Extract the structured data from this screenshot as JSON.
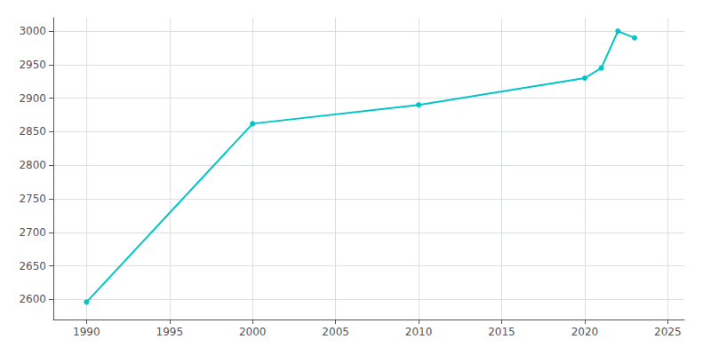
{
  "chart_data": {
    "type": "line",
    "x": [
      1990,
      2000,
      2010,
      2020,
      2021,
      2022,
      2023
    ],
    "values": [
      2596,
      2862,
      2890,
      2930,
      2945,
      3000,
      2990
    ],
    "color": "#00c5c5",
    "marker": "circle",
    "xlim": [
      1988,
      2026
    ],
    "ylim": [
      2570,
      3020
    ],
    "xticks": [
      1990,
      1995,
      2000,
      2005,
      2010,
      2015,
      2020,
      2025
    ],
    "yticks": [
      2600,
      2650,
      2700,
      2750,
      2800,
      2850,
      2900,
      2950,
      3000
    ],
    "grid": true
  }
}
